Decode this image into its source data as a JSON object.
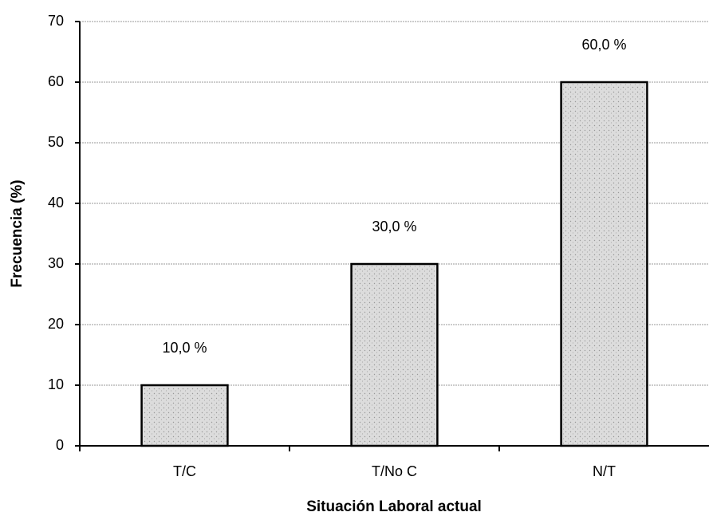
{
  "chart_data": {
    "type": "bar",
    "categories": [
      "T/C",
      "T/No C",
      "N/T"
    ],
    "values": [
      10,
      30,
      60
    ],
    "value_labels": [
      "10,0 %",
      "30,0 %",
      "60,0 %"
    ],
    "color": "#dcdcdc",
    "ylim": [
      0,
      70
    ],
    "yticks": [
      0,
      10,
      20,
      30,
      40,
      50,
      60,
      70
    ],
    "grid": true,
    "x_label": "Situación Laboral actual",
    "y_label": "Frecuencia (%)"
  }
}
